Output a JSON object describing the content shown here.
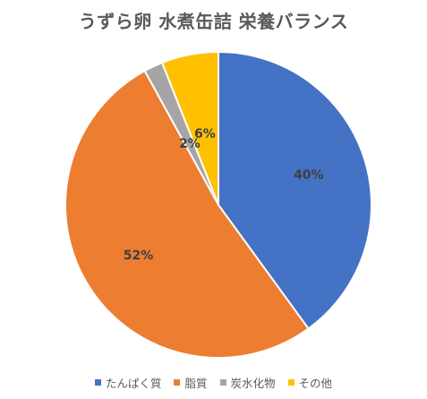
{
  "chart_data": {
    "type": "pie",
    "title": "うずら卵 水煮缶詰 栄養バランス",
    "categories": [
      "たんぱく質",
      "脂質",
      "炭水化物",
      "その他"
    ],
    "values": [
      40,
      52,
      2,
      6
    ],
    "labels": [
      "40%",
      "52%",
      "2%",
      "6%"
    ],
    "colors": [
      "#4472C4",
      "#ED7D31",
      "#A5A5A5",
      "#FFC000"
    ],
    "legend_position": "bottom"
  }
}
